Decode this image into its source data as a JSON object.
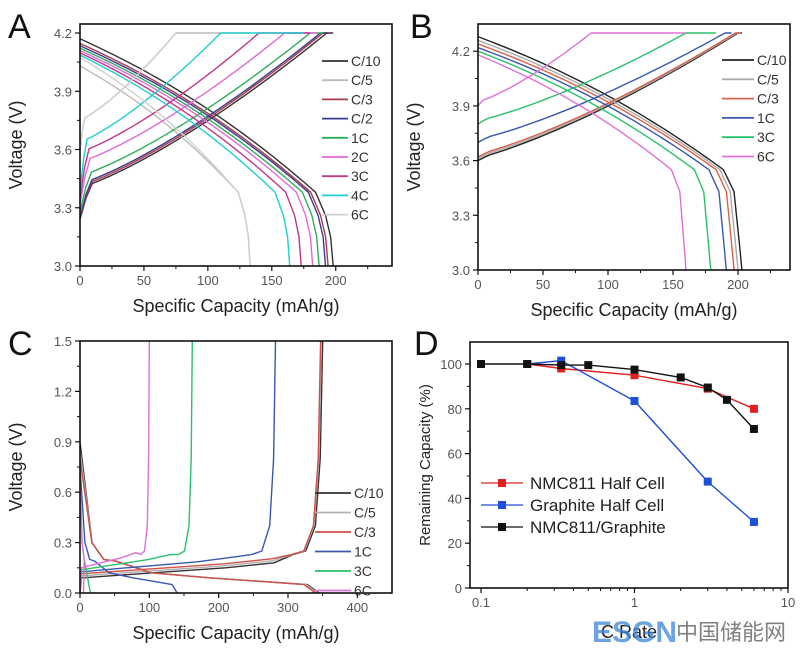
{
  "figure": {
    "watermark": {
      "latin": "ESGN",
      "cn": "中国储能网"
    }
  },
  "chart_data": [
    {
      "panel": "A",
      "type": "line",
      "title": "",
      "xlabel": "Specific Capacity (mAh/g)",
      "ylabel": "Voltage (V)",
      "xlim": [
        0,
        244
      ],
      "ylim": [
        3.0,
        4.2
      ],
      "xticks": [
        0,
        50,
        100,
        150,
        200
      ],
      "xtick_labels": [
        "0",
        "50",
        "100",
        "150",
        "200"
      ],
      "yticks": [
        3.0,
        3.3,
        3.6,
        3.9,
        4.2
      ],
      "ytick_labels": [
        "3.0",
        "3.3",
        "3.6",
        "3.9",
        "4.2"
      ],
      "grid": false,
      "legend_position": "top-right",
      "series": [
        {
          "name": "C/10",
          "color": "#333333",
          "charge_end": 198,
          "discharge_cap": 198,
          "charge_start_v": 3.24,
          "charge_plateau_v": 3.42,
          "cv_start": 193
        },
        {
          "name": "C/5",
          "color": "#bbbbbb",
          "charge_end": 133,
          "discharge_cap": 133,
          "charge_start_v": 3.6,
          "charge_plateau_v": 3.76,
          "cv_start": 75,
          "discharge_start_v": 4.03
        },
        {
          "name": "C/3",
          "color": "#b03a48",
          "charge_end": 195,
          "discharge_cap": 194,
          "charge_start_v": 3.24,
          "charge_plateau_v": 3.43,
          "cv_start": 190
        },
        {
          "name": "C/2",
          "color": "#3a3d8f",
          "charge_end": 194,
          "discharge_cap": 192,
          "charge_start_v": 3.25,
          "charge_plateau_v": 3.44,
          "cv_start": 188
        },
        {
          "name": "1C",
          "color": "#2fae5c",
          "charge_end": 190,
          "discharge_cap": 187,
          "charge_start_v": 3.28,
          "charge_plateau_v": 3.48,
          "cv_start": 180
        },
        {
          "name": "2C",
          "color": "#e06ad8",
          "charge_end": 185,
          "discharge_cap": 182,
          "charge_start_v": 3.32,
          "charge_plateau_v": 3.55,
          "cv_start": 160
        },
        {
          "name": "3C",
          "color": "#c2378a",
          "charge_end": 180,
          "discharge_cap": 173,
          "charge_start_v": 3.35,
          "charge_plateau_v": 3.6,
          "cv_start": 140
        },
        {
          "name": "4C",
          "color": "#1fcfcf",
          "charge_end": 175,
          "discharge_cap": 164,
          "charge_start_v": 3.38,
          "charge_plateau_v": 3.65,
          "cv_start": 110
        },
        {
          "name": "6C",
          "color": "#cfcfcf",
          "charge_end": 75,
          "discharge_cap": 133,
          "charge_start_v": 3.6,
          "charge_plateau_v": 3.76,
          "cv_start": 75
        }
      ]
    },
    {
      "panel": "B",
      "type": "line",
      "title": "",
      "xlabel": "Specific Capacity (mAh/g)",
      "ylabel": "Voltage (V)",
      "xlim": [
        0,
        240
      ],
      "ylim": [
        3.0,
        4.3
      ],
      "xticks": [
        0,
        50,
        100,
        150,
        200
      ],
      "xtick_labels": [
        "0",
        "50",
        "100",
        "150",
        "200"
      ],
      "yticks": [
        3.0,
        3.3,
        3.6,
        3.9,
        4.2
      ],
      "ytick_labels": [
        "3.0",
        "3.3",
        "3.6",
        "3.9",
        "4.2"
      ],
      "grid": false,
      "legend_position": "top-right",
      "series": [
        {
          "name": "C/10",
          "color": "#222222",
          "charge_end": 203,
          "discharge_cap": 203,
          "charge_start_v": 3.6,
          "cv_start": 200
        },
        {
          "name": "C/5",
          "color": "#aaaaaa",
          "charge_end": 202,
          "discharge_cap": 200,
          "charge_start_v": 3.61,
          "cv_start": 199
        },
        {
          "name": "C/3",
          "color": "#d9614a",
          "charge_end": 201,
          "discharge_cap": 197,
          "charge_start_v": 3.62,
          "cv_start": 198
        },
        {
          "name": "1C",
          "color": "#3a57b0",
          "charge_end": 195,
          "discharge_cap": 191,
          "charge_start_v": 3.7,
          "cv_start": 190
        },
        {
          "name": "3C",
          "color": "#2bc06a",
          "charge_end": 183,
          "discharge_cap": 179,
          "charge_start_v": 3.8,
          "cv_start": 160
        },
        {
          "name": "6C",
          "color": "#e070d8",
          "charge_end": 160,
          "discharge_cap": 160,
          "charge_start_v": 3.9,
          "cv_start": 87
        }
      ]
    },
    {
      "panel": "C",
      "type": "line",
      "title": "",
      "xlabel": "Specific Capacity (mAh/g)",
      "ylabel": "Voltage (V)",
      "xlim": [
        0,
        450
      ],
      "ylim": [
        0.0,
        1.5
      ],
      "xticks": [
        0,
        100,
        200,
        300,
        400
      ],
      "xtick_labels": [
        "0",
        "100",
        "200",
        "300",
        "400"
      ],
      "yticks": [
        0.0,
        0.3,
        0.6,
        0.9,
        1.2,
        1.5
      ],
      "ytick_labels": [
        "0.0",
        "0.3",
        "0.6",
        "0.9",
        "1.2",
        "1.5"
      ],
      "grid": false,
      "legend_position": "bottom-right",
      "series": [
        {
          "name": "C/10",
          "color": "#333333",
          "delith_cap": 350,
          "lith_cap": 345
        },
        {
          "name": "C/5",
          "color": "#b0b0b0",
          "delith_cap": 348,
          "lith_cap": 343
        },
        {
          "name": "C/3",
          "color": "#d0504a",
          "delith_cap": 347,
          "lith_cap": 340
        },
        {
          "name": "1C",
          "color": "#3a57b0",
          "delith_cap": 282,
          "lith_cap": 140
        },
        {
          "name": "3C",
          "color": "#2bc06a",
          "delith_cap": 162,
          "lith_cap": 15
        },
        {
          "name": "6C",
          "color": "#e070d8",
          "delith_cap": 100,
          "lith_cap": 5
        }
      ]
    },
    {
      "panel": "D",
      "type": "line",
      "title": "",
      "xlabel": "C Rate",
      "ylabel": "Remaining Capacity (%)",
      "xscale": "log",
      "xlim": [
        0.1,
        10
      ],
      "ylim": [
        0,
        110
      ],
      "xticks": [
        0.1,
        1,
        10
      ],
      "xtick_labels": [
        "0.1",
        "1",
        "10"
      ],
      "yticks": [
        0,
        20,
        40,
        60,
        80,
        100
      ],
      "ytick_labels": [
        "0",
        "20",
        "40",
        "60",
        "80",
        "100"
      ],
      "grid": false,
      "legend_position": "center-left",
      "series": [
        {
          "name": "NMC811 Half Cell",
          "color": "#e02020",
          "x": [
            0.2,
            0.333,
            1,
            3,
            6
          ],
          "y": [
            100,
            98,
            95,
            89,
            80
          ]
        },
        {
          "name": "Graphite Half Cell",
          "color": "#1f4fd8",
          "x": [
            0.2,
            0.333,
            1,
            3,
            6
          ],
          "y": [
            100,
            101.5,
            83.5,
            47.5,
            29.5
          ]
        },
        {
          "name": "NMC811/Graphite",
          "color": "#111111",
          "x": [
            0.1,
            0.2,
            0.333,
            0.5,
            1,
            2,
            3,
            4,
            6
          ],
          "y": [
            100,
            100,
            99.5,
            99.5,
            97.5,
            94,
            89.5,
            84,
            71
          ]
        }
      ]
    }
  ]
}
